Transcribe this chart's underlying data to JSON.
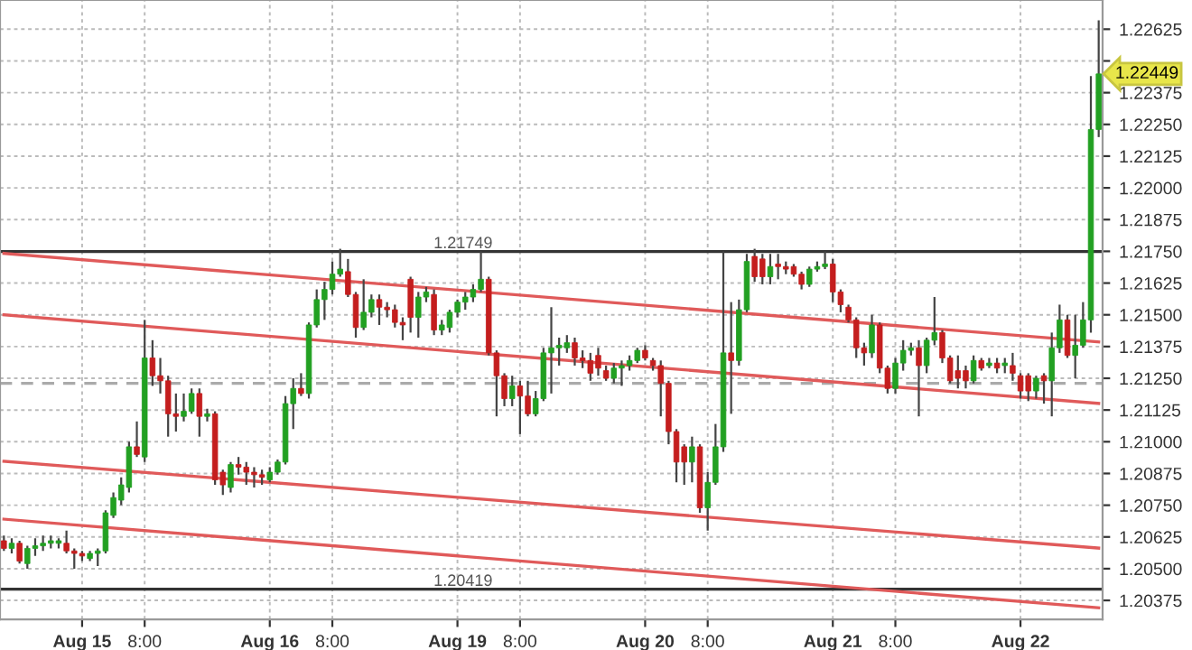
{
  "chart_data": {
    "type": "candlestick",
    "categories": [
      null,
      null,
      null,
      null,
      null,
      null,
      null,
      null,
      null,
      null,
      "Aug 15",
      null,
      null,
      null,
      null,
      null,
      null,
      null,
      "8:00",
      null,
      null,
      null,
      null,
      null,
      null,
      null,
      null,
      null,
      null,
      null,
      null,
      null,
      null,
      null,
      "Aug 16",
      null,
      null,
      null,
      null,
      null,
      null,
      null,
      "8:00",
      null,
      null,
      null,
      null,
      null,
      null,
      null,
      null,
      null,
      null,
      null,
      null,
      null,
      null,
      null,
      "Aug 19",
      null,
      null,
      null,
      null,
      null,
      null,
      null,
      "8:00",
      null,
      null,
      null,
      null,
      null,
      null,
      null,
      null,
      null,
      null,
      null,
      null,
      null,
      null,
      null,
      "Aug 20",
      null,
      null,
      null,
      null,
      null,
      null,
      null,
      "8:00",
      null,
      null,
      null,
      null,
      null,
      null,
      null,
      null,
      null,
      null,
      null,
      null,
      null,
      null,
      null,
      "Aug 21",
      null,
      null,
      null,
      null,
      null,
      null,
      null,
      "8:00",
      null,
      null,
      null,
      null,
      null,
      null,
      null,
      null,
      null,
      null,
      null,
      null,
      null,
      null,
      null,
      "Aug 22",
      null,
      null,
      null,
      null,
      null,
      null,
      null,
      null,
      null,
      null
    ],
    "ohlc": [
      [
        1.2061,
        1.2063,
        1.2057,
        1.2058
      ],
      [
        1.2058,
        1.2062,
        1.2056,
        1.206
      ],
      [
        1.206,
        1.2061,
        1.2052,
        1.2053
      ],
      [
        1.2052,
        1.2059,
        1.205,
        1.2058
      ],
      [
        1.2058,
        1.2062,
        1.2055,
        1.2059
      ],
      [
        1.2059,
        1.2063,
        1.2057,
        1.206
      ],
      [
        1.206,
        1.2063,
        1.2058,
        1.2061
      ],
      [
        1.206,
        1.2062,
        1.2058,
        1.2061
      ],
      [
        1.206,
        1.2065,
        1.2056,
        1.2057
      ],
      [
        1.2057,
        1.2058,
        1.205,
        1.2056
      ],
      [
        1.2056,
        1.2057,
        1.2053,
        1.2055
      ],
      [
        1.2054,
        1.2057,
        1.2053,
        1.2056
      ],
      [
        1.2056,
        1.2058,
        1.2051,
        1.2057
      ],
      [
        1.2057,
        1.2073,
        1.2056,
        1.2072
      ],
      [
        1.2071,
        1.208,
        1.207,
        1.2078
      ],
      [
        1.2077,
        1.2086,
        1.2075,
        1.2083
      ],
      [
        1.2082,
        1.21,
        1.208,
        1.2098
      ],
      [
        1.2098,
        1.2108,
        1.2094,
        1.2095
      ],
      [
        1.2094,
        1.2148,
        1.2092,
        1.2133
      ],
      [
        1.2133,
        1.214,
        1.2122,
        1.2126
      ],
      [
        1.2126,
        1.2133,
        1.2119,
        1.2124
      ],
      [
        1.2124,
        1.2126,
        1.2102,
        1.2111
      ],
      [
        1.2111,
        1.2119,
        1.2104,
        1.211
      ],
      [
        1.211,
        1.2119,
        1.2108,
        1.2112
      ],
      [
        1.2112,
        1.2121,
        1.2111,
        1.2119
      ],
      [
        1.2119,
        1.2121,
        1.2102,
        1.211
      ],
      [
        1.211,
        1.2113,
        1.2108,
        1.2111
      ],
      [
        1.2111,
        1.2112,
        1.2083,
        1.2085
      ],
      [
        1.2088,
        1.2089,
        1.2079,
        1.2083
      ],
      [
        1.2082,
        1.2092,
        1.208,
        1.2091
      ],
      [
        1.2091,
        1.2094,
        1.2087,
        1.209
      ],
      [
        1.209,
        1.2092,
        1.2083,
        1.2088
      ],
      [
        1.2088,
        1.209,
        1.2082,
        1.2087
      ],
      [
        1.2087,
        1.2089,
        1.2083,
        1.2086
      ],
      [
        1.2085,
        1.209,
        1.2084,
        1.2088
      ],
      [
        1.2088,
        1.2093,
        1.2087,
        1.2092
      ],
      [
        1.2092,
        1.2118,
        1.2091,
        1.2115
      ],
      [
        1.2115,
        1.2125,
        1.2105,
        1.2121
      ],
      [
        1.2121,
        1.2127,
        1.2118,
        1.2119
      ],
      [
        1.2119,
        1.2147,
        1.2117,
        1.2146
      ],
      [
        1.2146,
        1.216,
        1.2145,
        1.2156
      ],
      [
        1.2156,
        1.2163,
        1.2148,
        1.216
      ],
      [
        1.216,
        1.2171,
        1.2158,
        1.2166
      ],
      [
        1.2166,
        1.2176,
        1.2165,
        1.2168
      ],
      [
        1.2167,
        1.2172,
        1.2157,
        1.2158
      ],
      [
        1.2158,
        1.2159,
        1.2141,
        1.2145
      ],
      [
        1.2145,
        1.2164,
        1.2144,
        1.2151
      ],
      [
        1.2151,
        1.2158,
        1.2149,
        1.2156
      ],
      [
        1.2156,
        1.2158,
        1.2146,
        1.2153
      ],
      [
        1.2153,
        1.2155,
        1.2149,
        1.2152
      ],
      [
        1.2152,
        1.2154,
        1.2145,
        1.2147
      ],
      [
        1.2147,
        1.2149,
        1.214,
        1.2146
      ],
      [
        1.2164,
        1.2165,
        1.2143,
        1.2149
      ],
      [
        1.2149,
        1.2159,
        1.2141,
        1.2157
      ],
      [
        1.2157,
        1.2161,
        1.2155,
        1.2159
      ],
      [
        1.2158,
        1.216,
        1.2142,
        1.2144
      ],
      [
        1.2144,
        1.2148,
        1.2142,
        1.2146
      ],
      [
        1.2145,
        1.2152,
        1.2143,
        1.2151
      ],
      [
        1.2151,
        1.2156,
        1.2149,
        1.2155
      ],
      [
        1.2155,
        1.2159,
        1.2152,
        1.2157
      ],
      [
        1.2157,
        1.2162,
        1.2155,
        1.216
      ],
      [
        1.216,
        1.2175,
        1.2159,
        1.2164
      ],
      [
        1.2164,
        1.2165,
        1.2134,
        1.2135
      ],
      [
        1.2135,
        1.2136,
        1.211,
        1.2126
      ],
      [
        1.2126,
        1.2127,
        1.2114,
        1.2117
      ],
      [
        1.2117,
        1.2126,
        1.2114,
        1.2122
      ],
      [
        1.2122,
        1.2124,
        1.2103,
        1.2118
      ],
      [
        1.2118,
        1.2124,
        1.211,
        1.2111
      ],
      [
        1.2111,
        1.212,
        1.211,
        1.2117
      ],
      [
        1.2117,
        1.2137,
        1.2116,
        1.2135
      ],
      [
        1.2135,
        1.2153,
        1.2119,
        1.2137
      ],
      [
        1.2137,
        1.2141,
        1.213,
        1.2138
      ],
      [
        1.2137,
        1.2142,
        1.2135,
        1.2139
      ],
      [
        1.2139,
        1.2141,
        1.213,
        1.2133
      ],
      [
        1.2133,
        1.2136,
        1.2129,
        1.2132
      ],
      [
        1.2132,
        1.2135,
        1.2124,
        1.2127
      ],
      [
        1.2134,
        1.2137,
        1.2126,
        1.2129
      ],
      [
        1.2128,
        1.213,
        1.2124,
        1.2125
      ],
      [
        1.2125,
        1.2131,
        1.2123,
        1.2129
      ],
      [
        1.2129,
        1.2132,
        1.2122,
        1.213
      ],
      [
        1.213,
        1.2134,
        1.2128,
        1.2132
      ],
      [
        1.2132,
        1.2137,
        1.2131,
        1.2136
      ],
      [
        1.2136,
        1.2138,
        1.2132,
        1.2133
      ],
      [
        1.2132,
        1.2133,
        1.2128,
        1.213
      ],
      [
        1.213,
        1.2132,
        1.211,
        1.2123
      ],
      [
        1.2123,
        1.2124,
        1.2099,
        1.2104
      ],
      [
        1.2104,
        1.2105,
        1.2084,
        1.2092
      ],
      [
        1.2098,
        1.2099,
        1.2083,
        1.2092
      ],
      [
        1.2092,
        1.2102,
        1.2084,
        1.2098
      ],
      [
        1.2098,
        1.2099,
        1.2072,
        1.2074
      ],
      [
        1.2074,
        1.2088,
        1.2065,
        1.2084
      ],
      [
        1.2084,
        1.2107,
        1.2083,
        1.2098
      ],
      [
        1.2098,
        1.2175,
        1.2096,
        1.2135
      ],
      [
        1.2135,
        1.2155,
        1.2111,
        1.2132
      ],
      [
        1.2132,
        1.2156,
        1.213,
        1.2152
      ],
      [
        1.2152,
        1.2174,
        1.2151,
        1.2171
      ],
      [
        1.2173,
        1.2176,
        1.2163,
        1.2165
      ],
      [
        1.2172,
        1.2174,
        1.2162,
        1.2165
      ],
      [
        1.2165,
        1.2174,
        1.2162,
        1.2169
      ],
      [
        1.217,
        1.2174,
        1.2164,
        1.2169
      ],
      [
        1.2169,
        1.2171,
        1.2166,
        1.2168
      ],
      [
        1.2169,
        1.217,
        1.2165,
        1.2166
      ],
      [
        1.2166,
        1.2167,
        1.216,
        1.2162
      ],
      [
        1.2162,
        1.2169,
        1.2161,
        1.2168
      ],
      [
        1.2168,
        1.2171,
        1.2167,
        1.2169
      ],
      [
        1.2169,
        1.2175,
        1.2168,
        1.217
      ],
      [
        1.217,
        1.2172,
        1.2155,
        1.2159
      ],
      [
        1.2159,
        1.216,
        1.2151,
        1.2154
      ],
      [
        1.2153,
        1.2154,
        1.2147,
        1.2148
      ],
      [
        1.2148,
        1.2149,
        1.2133,
        1.2137
      ],
      [
        1.2137,
        1.2139,
        1.213,
        1.2135
      ],
      [
        1.2135,
        1.215,
        1.2133,
        1.2146
      ],
      [
        1.2146,
        1.2147,
        1.2127,
        1.2129
      ],
      [
        1.2129,
        1.213,
        1.2119,
        1.2121
      ],
      [
        1.2121,
        1.2133,
        1.2119,
        1.2131
      ],
      [
        1.2131,
        1.214,
        1.2128,
        1.2136
      ],
      [
        1.2136,
        1.2139,
        1.2134,
        1.2137
      ],
      [
        1.2137,
        1.214,
        1.211,
        1.213
      ],
      [
        1.213,
        1.2141,
        1.2127,
        1.214
      ],
      [
        1.214,
        1.2157,
        1.2138,
        1.2143
      ],
      [
        1.2143,
        1.2144,
        1.2131,
        1.2133
      ],
      [
        1.2133,
        1.2134,
        1.2123,
        1.2124
      ],
      [
        1.2128,
        1.2134,
        1.2121,
        1.2125
      ],
      [
        1.2128,
        1.213,
        1.2121,
        1.2124
      ],
      [
        1.2124,
        1.2134,
        1.2123,
        1.2132
      ],
      [
        1.2132,
        1.2133,
        1.2128,
        1.2129
      ],
      [
        1.213,
        1.2133,
        1.2129,
        1.2131
      ],
      [
        1.2131,
        1.2133,
        1.2127,
        1.2129
      ],
      [
        1.213,
        1.2133,
        1.2127,
        1.2131
      ],
      [
        1.213,
        1.2135,
        1.2124,
        1.2127
      ],
      [
        1.2126,
        1.2127,
        1.2117,
        1.212
      ],
      [
        1.2126,
        1.2127,
        1.2116,
        1.212
      ],
      [
        1.212,
        1.2126,
        1.2117,
        1.2125
      ],
      [
        1.2126,
        1.2127,
        1.2115,
        1.2124
      ],
      [
        1.2124,
        1.2143,
        1.211,
        1.2137
      ],
      [
        1.2137,
        1.2154,
        1.2135,
        1.2148
      ],
      [
        1.2148,
        1.215,
        1.2133,
        1.2134
      ],
      [
        1.2134,
        1.215,
        1.2125,
        1.2138
      ],
      [
        1.2138,
        1.2155,
        1.2137,
        1.2148
      ],
      [
        1.2148,
        1.2244,
        1.2143,
        1.2223
      ],
      [
        1.2223,
        1.2266,
        1.222,
        1.22449
      ]
    ],
    "colors": [
      "#c41e1e",
      "#22a022",
      "#c41e1e",
      "#22a022",
      "#22a022",
      "#22a022",
      "#22a022",
      "#22a022",
      "#c41e1e",
      "#c41e1e",
      "#c41e1e",
      "#22a022",
      "#22a022",
      "#22a022",
      "#22a022",
      "#22a022",
      "#22a022",
      "#c41e1e",
      "#22a022",
      "#c41e1e",
      "#c41e1e",
      "#c41e1e",
      "#c41e1e",
      "#22a022",
      "#22a022",
      "#c41e1e",
      "#22a022",
      "#c41e1e",
      "#c41e1e",
      "#22a022",
      "#c41e1e",
      "#c41e1e",
      "#c41e1e",
      "#c41e1e",
      "#22a022",
      "#22a022",
      "#22a022",
      "#22a022",
      "#c41e1e",
      "#22a022",
      "#22a022",
      "#22a022",
      "#22a022",
      "#22a022",
      "#c41e1e",
      "#c41e1e",
      "#22a022",
      "#22a022",
      "#c41e1e",
      "#c41e1e",
      "#c41e1e",
      "#c41e1e",
      "#c41e1e",
      "#22a022",
      "#22a022",
      "#c41e1e",
      "#22a022",
      "#22a022",
      "#22a022",
      "#22a022",
      "#22a022",
      "#22a022",
      "#c41e1e",
      "#c41e1e",
      "#c41e1e",
      "#22a022",
      "#c41e1e",
      "#c41e1e",
      "#22a022",
      "#22a022",
      "#22a022",
      "#22a022",
      "#22a022",
      "#c41e1e",
      "#c41e1e",
      "#c41e1e",
      "#c41e1e",
      "#c41e1e",
      "#22a022",
      "#22a022",
      "#22a022",
      "#22a022",
      "#c41e1e",
      "#c41e1e",
      "#c41e1e",
      "#c41e1e",
      "#c41e1e",
      "#c41e1e",
      "#22a022",
      "#c41e1e",
      "#22a022",
      "#22a022",
      "#22a022",
      "#c41e1e",
      "#22a022",
      "#22a022",
      "#c41e1e",
      "#c41e1e",
      "#22a022",
      "#c41e1e",
      "#c41e1e",
      "#c41e1e",
      "#c41e1e",
      "#22a022",
      "#22a022",
      "#22a022",
      "#c41e1e",
      "#c41e1e",
      "#c41e1e",
      "#c41e1e",
      "#c41e1e",
      "#22a022",
      "#c41e1e",
      "#c41e1e",
      "#22a022",
      "#22a022",
      "#22a022",
      "#c41e1e",
      "#22a022",
      "#22a022",
      "#c41e1e",
      "#c41e1e",
      "#c41e1e",
      "#c41e1e",
      "#22a022",
      "#c41e1e",
      "#22a022",
      "#c41e1e",
      "#22a022",
      "#c41e1e",
      "#c41e1e",
      "#c41e1e",
      "#22a022",
      "#c41e1e",
      "#22a022",
      "#22a022",
      "#c41e1e",
      "#22a022",
      "#22a022",
      "#22a022",
      "#22a022"
    ],
    "series": [
      {
        "type": "line",
        "color": "#e05a5a",
        "values": [
          1.21742,
          null,
          null,
          null,
          null,
          null,
          null,
          null,
          null,
          null,
          null,
          null,
          null,
          null,
          null,
          null,
          null,
          null,
          null,
          null,
          null,
          null,
          null,
          null,
          null,
          null,
          null,
          null,
          null,
          null,
          null,
          null,
          null,
          null,
          null,
          null,
          null,
          null,
          null,
          null,
          null,
          null,
          null,
          null,
          null,
          null,
          null,
          null,
          null,
          null,
          null,
          null,
          null,
          null,
          null,
          null,
          null,
          null,
          null,
          null,
          null,
          null,
          null,
          null,
          null,
          null,
          null,
          null,
          null,
          null,
          null,
          null,
          null,
          null,
          null,
          null,
          null,
          null,
          null,
          null,
          null,
          null,
          null,
          null,
          null,
          null,
          null,
          null,
          null,
          null,
          null,
          null,
          null,
          null,
          null,
          null,
          null,
          null,
          null,
          null,
          null,
          null,
          null,
          null,
          null,
          null,
          null,
          null,
          null,
          null,
          null,
          null,
          null,
          null,
          null,
          null,
          null,
          null,
          null,
          null,
          null,
          null,
          null,
          null,
          null,
          null,
          null,
          null,
          null,
          null,
          null,
          null,
          null,
          null,
          null,
          null,
          null,
          null,
          null,
          null,
          1.21393
        ]
      },
      {
        "type": "line",
        "color": "#e05a5a",
        "values": [
          1.215,
          null,
          null,
          null,
          null,
          null,
          null,
          null,
          null,
          null,
          null,
          null,
          null,
          null,
          null,
          null,
          null,
          null,
          null,
          null,
          null,
          null,
          null,
          null,
          null,
          null,
          null,
          null,
          null,
          null,
          null,
          null,
          null,
          null,
          null,
          null,
          null,
          null,
          null,
          null,
          null,
          null,
          null,
          null,
          null,
          null,
          null,
          null,
          null,
          null,
          null,
          null,
          null,
          null,
          null,
          null,
          null,
          null,
          null,
          null,
          null,
          null,
          null,
          null,
          null,
          null,
          null,
          null,
          null,
          null,
          null,
          null,
          null,
          null,
          null,
          null,
          null,
          null,
          null,
          null,
          null,
          null,
          null,
          null,
          null,
          null,
          null,
          null,
          null,
          null,
          null,
          null,
          null,
          null,
          null,
          null,
          null,
          null,
          null,
          null,
          null,
          null,
          null,
          null,
          null,
          null,
          null,
          null,
          null,
          null,
          null,
          null,
          null,
          null,
          null,
          null,
          null,
          null,
          null,
          null,
          null,
          null,
          null,
          null,
          null,
          null,
          null,
          null,
          null,
          null,
          null,
          null,
          null,
          null,
          null,
          null,
          null,
          null,
          null,
          null,
          1.21151
        ]
      },
      {
        "type": "line",
        "color": "#e05a5a",
        "values": [
          1.20923,
          null,
          null,
          null,
          null,
          null,
          null,
          null,
          null,
          null,
          null,
          null,
          null,
          null,
          null,
          null,
          null,
          null,
          null,
          null,
          null,
          null,
          null,
          null,
          null,
          null,
          null,
          null,
          null,
          null,
          null,
          null,
          null,
          null,
          null,
          null,
          null,
          null,
          null,
          null,
          null,
          null,
          null,
          null,
          null,
          null,
          null,
          null,
          null,
          null,
          null,
          null,
          null,
          null,
          null,
          null,
          null,
          null,
          null,
          null,
          null,
          null,
          null,
          null,
          null,
          null,
          null,
          null,
          null,
          null,
          null,
          null,
          null,
          null,
          null,
          null,
          null,
          null,
          null,
          null,
          null,
          null,
          null,
          null,
          null,
          null,
          null,
          null,
          null,
          null,
          null,
          null,
          null,
          null,
          null,
          null,
          null,
          null,
          null,
          null,
          null,
          null,
          null,
          null,
          null,
          null,
          null,
          null,
          null,
          null,
          null,
          null,
          null,
          null,
          null,
          null,
          null,
          null,
          null,
          null,
          null,
          null,
          null,
          null,
          null,
          null,
          null,
          null,
          null,
          null,
          null,
          null,
          null,
          null,
          null,
          null,
          null,
          null,
          null,
          null,
          1.20581
        ]
      },
      {
        "type": "line",
        "color": "#e05a5a",
        "values": [
          1.20695,
          null,
          null,
          null,
          null,
          null,
          null,
          null,
          null,
          null,
          null,
          null,
          null,
          null,
          null,
          null,
          null,
          null,
          null,
          null,
          null,
          null,
          null,
          null,
          null,
          null,
          null,
          null,
          null,
          null,
          null,
          null,
          null,
          null,
          null,
          null,
          null,
          null,
          null,
          null,
          null,
          null,
          null,
          null,
          null,
          null,
          null,
          null,
          null,
          null,
          null,
          null,
          null,
          null,
          null,
          null,
          null,
          null,
          null,
          null,
          null,
          null,
          null,
          null,
          null,
          null,
          null,
          null,
          null,
          null,
          null,
          null,
          null,
          null,
          null,
          null,
          null,
          null,
          null,
          null,
          null,
          null,
          null,
          null,
          null,
          null,
          null,
          null,
          null,
          null,
          null,
          null,
          null,
          null,
          null,
          null,
          null,
          null,
          null,
          null,
          null,
          null,
          null,
          null,
          null,
          null,
          null,
          null,
          null,
          null,
          null,
          null,
          null,
          null,
          null,
          null,
          null,
          null,
          null,
          null,
          null,
          null,
          null,
          null,
          null,
          null,
          null,
          null,
          null,
          null,
          null,
          null,
          null,
          null,
          null,
          null,
          null,
          null,
          null,
          null,
          1.20346
        ]
      }
    ],
    "ylim": [
      1.203,
      1.2274
    ],
    "yticks": [
      1.20375,
      {
        "value": 1.205,
        "label": "1.20500"
      },
      1.20625,
      {
        "value": 1.2075,
        "label": "1.20750"
      },
      1.20875,
      {
        "value": 1.21,
        "label": "1.21000"
      },
      1.21125,
      {
        "value": 1.2125,
        "label": "1.21250"
      },
      1.21375,
      {
        "value": 1.215,
        "label": "1.21500"
      },
      1.21625,
      {
        "value": 1.2175,
        "label": "1.21750"
      },
      1.21875,
      {
        "value": 1.22,
        "label": "1.22000"
      },
      1.22125,
      {
        "value": 1.2225,
        "label": "1.22250"
      },
      1.22375,
      {
        "value": 1.225,
        "label": null
      },
      1.22625
    ],
    "ref_lines": [
      {
        "axis": "y",
        "value": 1.21749,
        "label": "1.21749",
        "color": "#333333"
      },
      {
        "axis": "y",
        "value": 1.20419,
        "label": "1.20419",
        "color": "#333333"
      },
      {
        "axis": "y",
        "value": 1.2123,
        "color": "#aaaaaa",
        "line_style": "dashed"
      }
    ],
    "annotations": [
      "1.22449"
    ],
    "grid": true
  }
}
